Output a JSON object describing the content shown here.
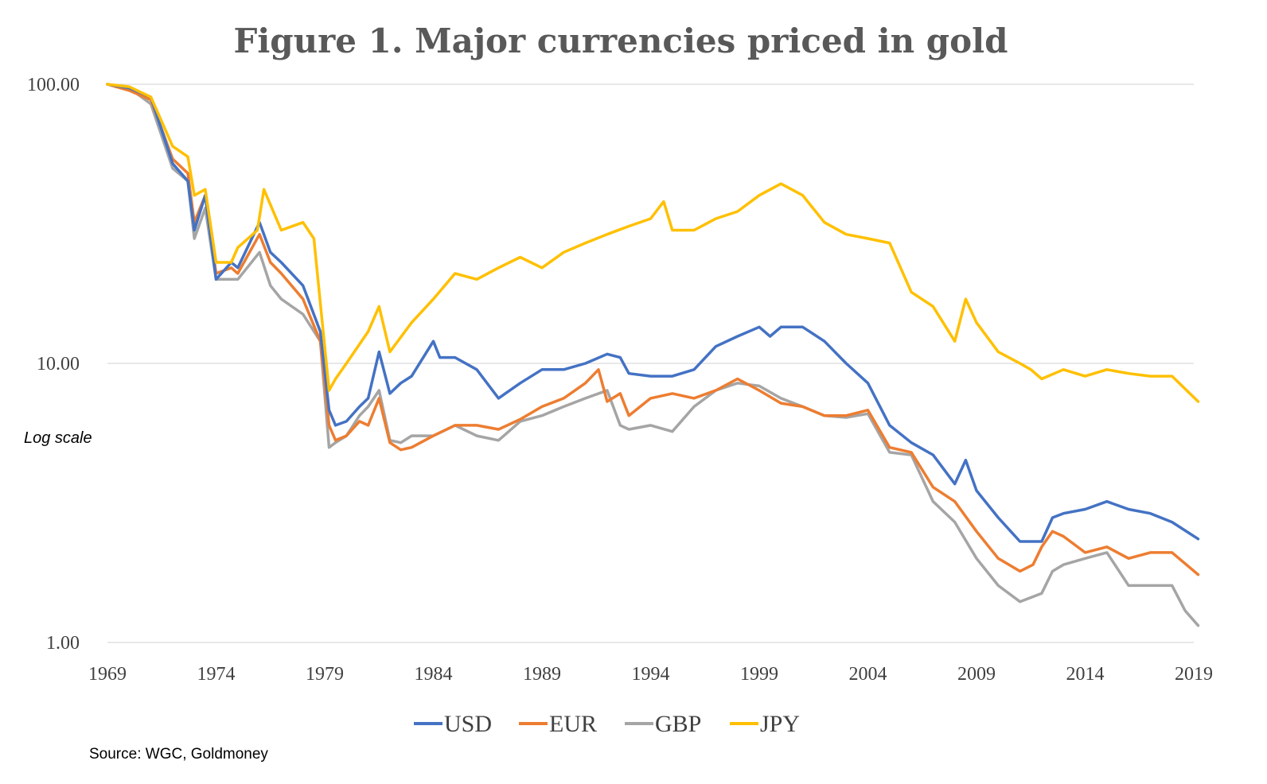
{
  "chart_data": {
    "type": "line",
    "title": "Figure 1.  Major currencies priced in gold",
    "annotation": "Log scale",
    "source": "Source: WGC, Goldmoney",
    "y_scale": "log",
    "ylim": [
      1,
      100
    ],
    "y_ticks": [
      {
        "value": 1,
        "label": "1.00"
      },
      {
        "value": 10,
        "label": "10.00"
      },
      {
        "value": 100,
        "label": "100.00"
      }
    ],
    "xlim": [
      1969,
      2019
    ],
    "x_ticks": [
      1969,
      1974,
      1979,
      1984,
      1989,
      1994,
      1999,
      2004,
      2009,
      2014,
      2019
    ],
    "grid": true,
    "legend_position": "bottom",
    "series": [
      {
        "name": "USD",
        "color": "#4472c4",
        "x": [
          1969,
          1970,
          1971,
          1972,
          1972.7,
          1973,
          1973.5,
          1974,
          1974.7,
          1975,
          1976,
          1976.5,
          1977,
          1978,
          1978.8,
          1979.2,
          1979.5,
          1980,
          1980.6,
          1981,
          1981.5,
          1982,
          1982.5,
          1983,
          1984,
          1984.3,
          1985,
          1986,
          1987,
          1988,
          1989,
          1990,
          1991,
          1992,
          1992.6,
          1993,
          1994,
          1995,
          1996,
          1997,
          1998,
          1999,
          1999.5,
          2000,
          2001,
          2002,
          2003,
          2004,
          2005,
          2006,
          2007,
          2008,
          2008.5,
          2009,
          2010,
          2011,
          2012,
          2012.5,
          2013,
          2014,
          2015,
          2016,
          2017,
          2018,
          2019.2
        ],
        "values": [
          100,
          97,
          90,
          52,
          45,
          30,
          40,
          20,
          23,
          22,
          32,
          25,
          23,
          19,
          13,
          6.8,
          6.0,
          6.2,
          7.0,
          7.5,
          11,
          7.8,
          8.5,
          9.0,
          12,
          10.5,
          10.5,
          9.5,
          7.5,
          8.5,
          9.5,
          9.5,
          10,
          10.8,
          10.5,
          9.2,
          9.0,
          9.0,
          9.5,
          11.5,
          12.5,
          13.5,
          12.5,
          13.5,
          13.5,
          12,
          10,
          8.5,
          6.0,
          5.2,
          4.7,
          3.7,
          4.5,
          3.5,
          2.8,
          2.3,
          2.3,
          2.8,
          2.9,
          3.0,
          3.2,
          3.0,
          2.9,
          2.7,
          2.35
        ]
      },
      {
        "name": "EUR",
        "color": "#ed7d31",
        "x": [
          1969,
          1970,
          1971,
          1972,
          1972.7,
          1973,
          1973.5,
          1974,
          1974.7,
          1975,
          1976,
          1976.5,
          1977,
          1978,
          1978.8,
          1979.2,
          1979.5,
          1980,
          1980.6,
          1981,
          1981.5,
          1982,
          1982.5,
          1983,
          1984,
          1985,
          1986,
          1987,
          1988,
          1989,
          1990,
          1991,
          1991.6,
          1992,
          1992.6,
          1993,
          1994,
          1995,
          1996,
          1997,
          1998,
          1999,
          2000,
          2001,
          2002,
          2003,
          2004,
          2005,
          2006,
          2007,
          2008,
          2009,
          2010,
          2011,
          2011.6,
          2012,
          2012.5,
          2013,
          2014,
          2015,
          2016,
          2017,
          2018,
          2019.2
        ],
        "values": [
          100,
          95,
          88,
          54,
          48,
          32,
          40,
          21,
          22,
          21,
          29,
          23,
          21,
          17,
          12,
          6.0,
          5.3,
          5.5,
          6.2,
          6.0,
          7.5,
          5.2,
          4.9,
          5.0,
          5.5,
          6.0,
          6.0,
          5.8,
          6.3,
          7.0,
          7.5,
          8.5,
          9.5,
          7.3,
          7.8,
          6.5,
          7.5,
          7.8,
          7.5,
          8.0,
          8.8,
          8.0,
          7.2,
          7.0,
          6.5,
          6.5,
          6.8,
          5.0,
          4.8,
          3.6,
          3.2,
          2.5,
          2.0,
          1.8,
          1.9,
          2.2,
          2.5,
          2.4,
          2.1,
          2.2,
          2.0,
          2.1,
          2.1,
          1.75
        ]
      },
      {
        "name": "GBP",
        "color": "#a5a5a5",
        "x": [
          1969,
          1970,
          1971,
          1972,
          1972.7,
          1973,
          1973.5,
          1974,
          1974.7,
          1975,
          1976,
          1976.5,
          1977,
          1978,
          1978.8,
          1979.2,
          1979.5,
          1980,
          1980.6,
          1981,
          1981.5,
          1982,
          1982.5,
          1983,
          1984,
          1985,
          1986,
          1987,
          1988,
          1989,
          1990,
          1991,
          1992,
          1992.6,
          1993,
          1994,
          1995,
          1996,
          1997,
          1998,
          1999,
          2000,
          2001,
          2002,
          2003,
          2004,
          2005,
          2006,
          2007,
          2008,
          2009,
          2010,
          2011,
          2012,
          2012.5,
          2013,
          2014,
          2015,
          2016,
          2017,
          2018,
          2018.6,
          2019.2
        ],
        "values": [
          100,
          97,
          85,
          50,
          45,
          28,
          36,
          20,
          20,
          20,
          25,
          19,
          17,
          15,
          12,
          5.0,
          5.2,
          5.5,
          6.5,
          7.0,
          8.0,
          5.3,
          5.2,
          5.5,
          5.5,
          6.0,
          5.5,
          5.3,
          6.2,
          6.5,
          7.0,
          7.5,
          8.0,
          6.0,
          5.8,
          6.0,
          5.7,
          7.0,
          8.0,
          8.5,
          8.3,
          7.5,
          7.0,
          6.5,
          6.4,
          6.6,
          4.8,
          4.7,
          3.2,
          2.7,
          2.0,
          1.6,
          1.4,
          1.5,
          1.8,
          1.9,
          2.0,
          2.1,
          1.6,
          1.6,
          1.6,
          1.3,
          1.15
        ]
      },
      {
        "name": "JPY",
        "color": "#ffc000",
        "x": [
          1969,
          1970,
          1971,
          1972,
          1972.7,
          1973,
          1973.5,
          1974,
          1974.7,
          1975,
          1975.9,
          1976.2,
          1977,
          1978,
          1978.5,
          1979.2,
          1979.5,
          1980,
          1981,
          1981.5,
          1982,
          1983,
          1984,
          1985,
          1986,
          1987,
          1988,
          1989,
          1990,
          1991,
          1992,
          1993,
          1994,
          1994.6,
          1995,
          1996,
          1997,
          1998,
          1999,
          2000,
          2001,
          2002,
          2003,
          2004,
          2005,
          2006,
          2007,
          2008,
          2008.5,
          2009,
          2010,
          2011,
          2011.5,
          2012,
          2013,
          2014,
          2015,
          2016,
          2017,
          2018,
          2019.2
        ],
        "values": [
          100,
          98,
          90,
          60,
          55,
          40,
          42,
          23,
          23,
          26,
          30,
          42,
          30,
          32,
          28,
          8.0,
          8.8,
          10,
          13,
          16,
          11,
          14,
          17,
          21,
          20,
          22,
          24,
          22,
          25,
          27,
          29,
          31,
          33,
          38,
          30,
          30,
          33,
          35,
          40,
          44,
          40,
          32,
          29,
          28,
          27,
          18,
          16,
          12,
          17,
          14,
          11,
          10,
          9.5,
          8.8,
          9.5,
          9.0,
          9.5,
          9.2,
          9.0,
          9.0,
          7.3
        ]
      }
    ]
  }
}
